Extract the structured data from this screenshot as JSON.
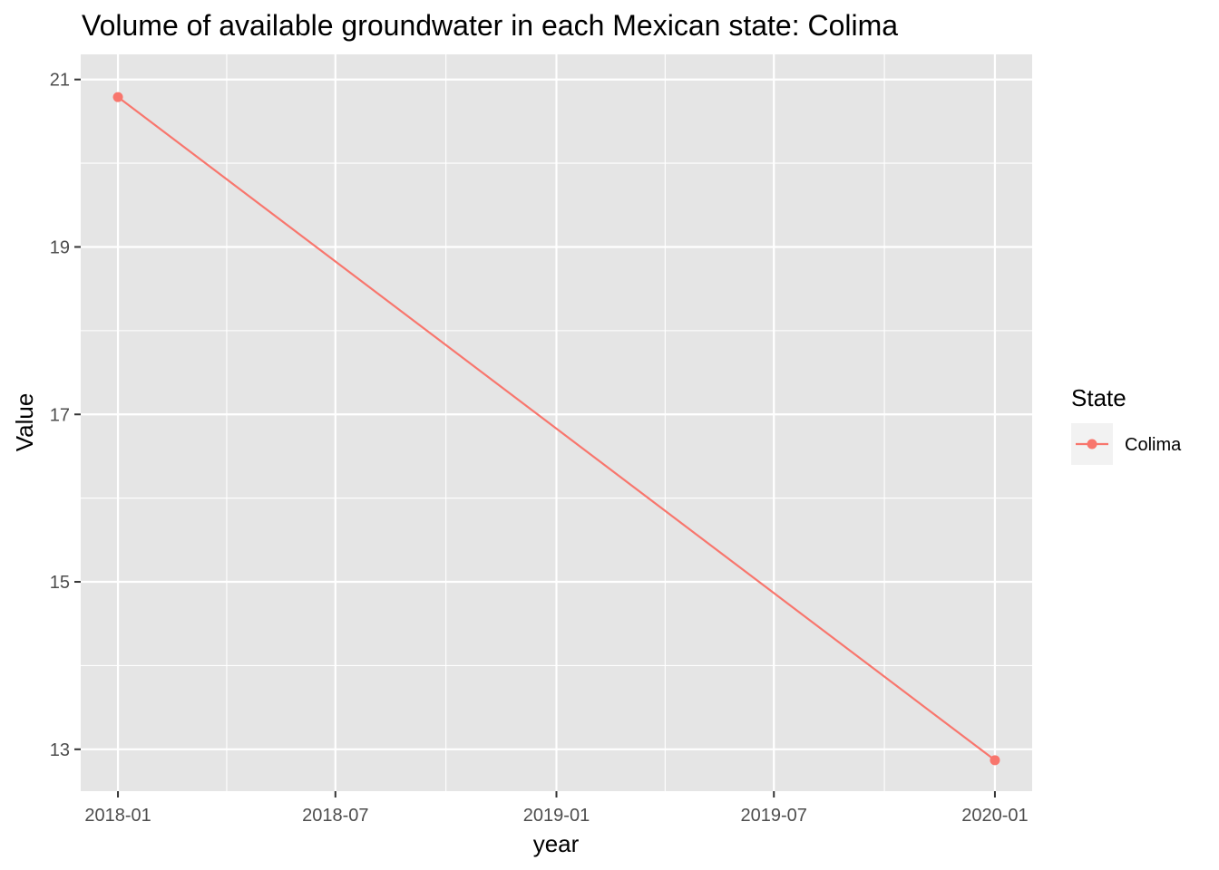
{
  "chart_data": {
    "type": "line",
    "title": "Volume of available groundwater in each Mexican state: Colima",
    "xlabel": "year",
    "ylabel": "Value",
    "x_ticks": [
      "2018-01",
      "2018-07",
      "2019-01",
      "2019-07",
      "2020-01"
    ],
    "y_ticks": [
      13,
      15,
      17,
      19,
      21
    ],
    "xlim": [
      "2017-12-01",
      "2020-02-01"
    ],
    "ylim": [
      12.5,
      21.3
    ],
    "grid": true,
    "legend": {
      "title": "State",
      "placement": "right"
    },
    "series": [
      {
        "name": "Colima",
        "color": "#F8766D",
        "points": [
          {
            "x": "2018-01-01",
            "y": 20.79
          },
          {
            "x": "2020-01-01",
            "y": 12.87
          }
        ]
      }
    ]
  }
}
